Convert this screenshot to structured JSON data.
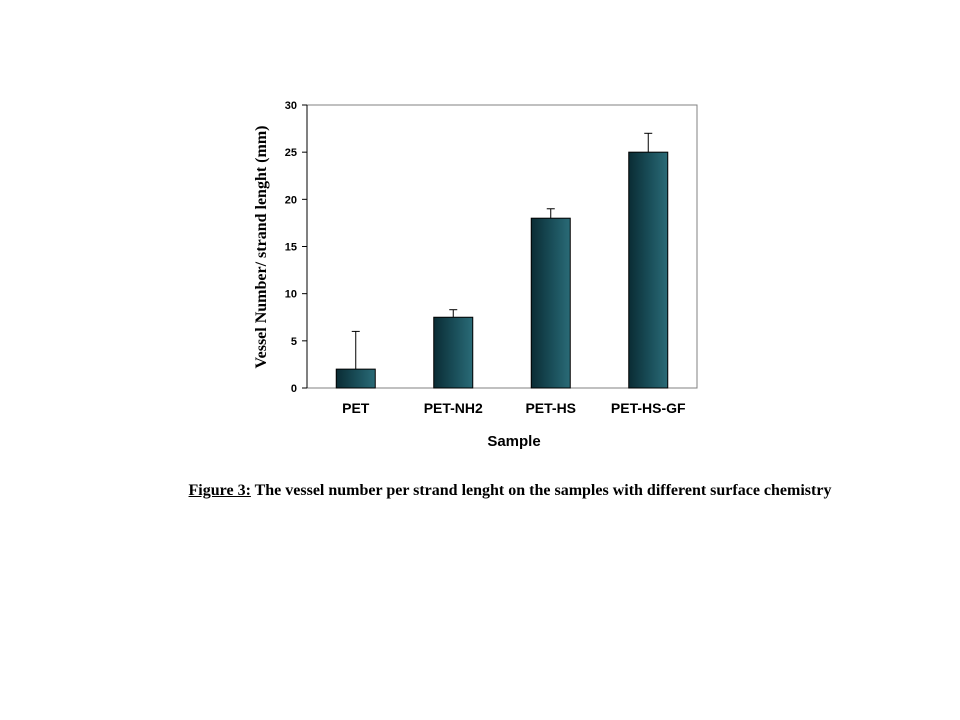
{
  "chart_data": {
    "type": "bar",
    "categories": [
      "PET",
      "PET-NH2",
      "PET-HS",
      "PET-HS-GF"
    ],
    "values": [
      2,
      7.5,
      18,
      25
    ],
    "errors": [
      4,
      0.8,
      1,
      2
    ],
    "xlabel": "Sample",
    "ylabel": "Vessel Number/ strand lenght (mm)",
    "ylim": [
      0,
      30
    ],
    "yticks": [
      0,
      5,
      10,
      15,
      20,
      25,
      30
    ],
    "grid": false,
    "legend": "none"
  },
  "caption": {
    "lead": "Figure 3:",
    "text": " The vessel number per strand  lenght on the samples with different surface chemistry"
  },
  "colors": {
    "bar_dark": "#0a2c34",
    "bar_mid": "#1a4f5a",
    "bar_light": "#2a6b77"
  }
}
